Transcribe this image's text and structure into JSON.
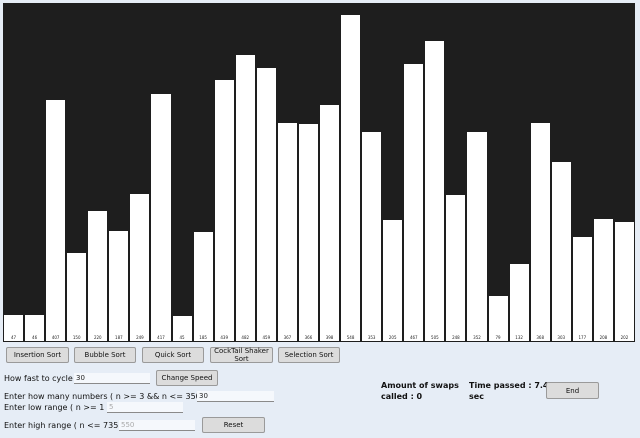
{
  "visualizer": {
    "values": [
      47,
      46,
      407,
      150,
      220,
      187,
      249,
      417,
      45,
      185,
      439,
      482,
      459,
      367,
      366,
      398,
      548,
      353,
      205,
      467,
      505,
      248,
      352,
      79,
      132,
      368,
      303,
      177,
      208,
      202
    ],
    "max_range": 550
  },
  "sort_buttons": {
    "insertion": "Insertion Sort",
    "bubble": "Bubble Sort",
    "quick": "Quick Sort",
    "cocktail": "CockTail Shaker Sort",
    "selection": "Selection Sort"
  },
  "controls": {
    "speed_label": "How fast to cycle",
    "speed_value": "30",
    "change_speed_button": "Change Speed",
    "count_label": "Enter how many numbers ( n >= 3 && n <= 350 )",
    "count_value": "30",
    "low_label": "Enter low range ( n >= 1 )",
    "low_placeholder": "5",
    "high_label": "Enter high range ( n <= 735 )",
    "high_placeholder": "550",
    "reset_button": "Reset"
  },
  "stats": {
    "swaps_label": "Amount of swaps",
    "swaps_value": "called : 0",
    "time_label": "Time passed : 7.49",
    "time_unit": "sec",
    "end_button": "End"
  }
}
